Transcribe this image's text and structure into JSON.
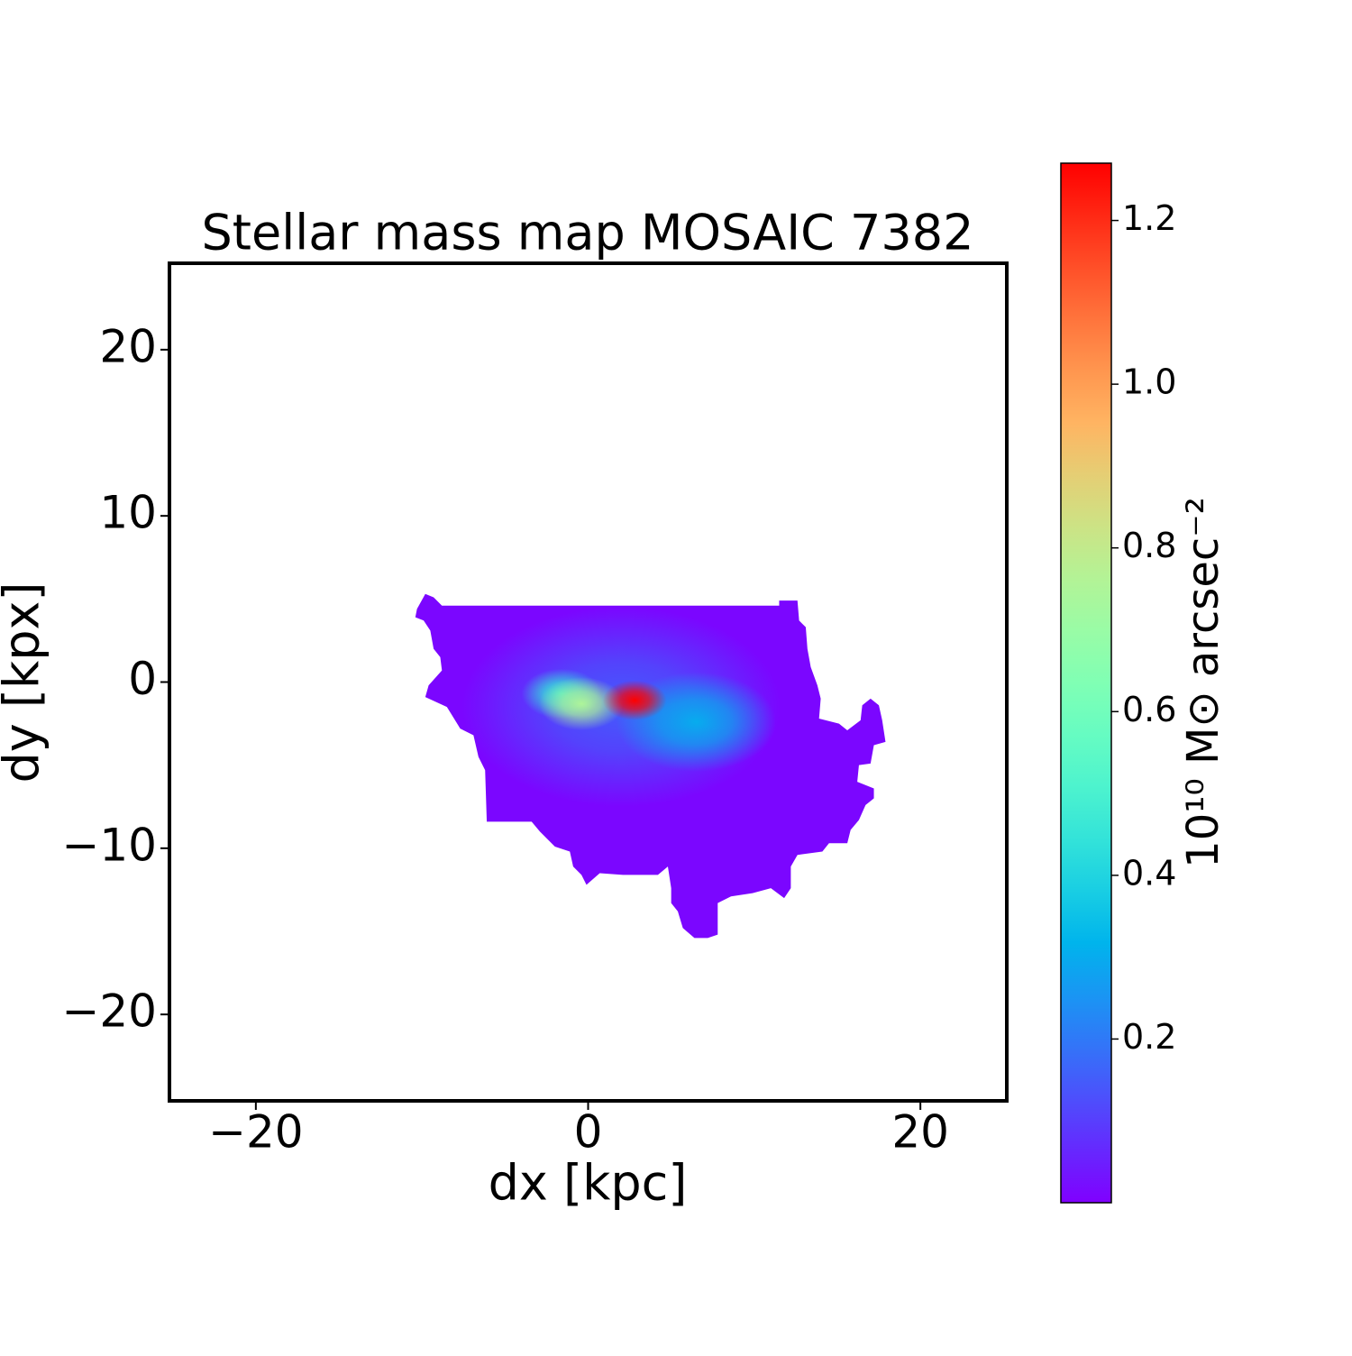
{
  "chart_data": {
    "type": "image_map",
    "title": "Stellar mass map MOSAIC 7382",
    "xlabel": "dx [kpc]",
    "ylabel": "dy [kpx]",
    "colorbar_label": "10¹⁰ M⊙ arcsec⁻²",
    "colormap": "rainbow",
    "xlim": [
      -25.2,
      25.2
    ],
    "ylim": [
      -25.2,
      25.2
    ],
    "xticks": [
      {
        "value": -20,
        "label": "−20"
      },
      0,
      20
    ],
    "yticks": [
      {
        "value": -20,
        "label": "−20"
      },
      {
        "value": -10,
        "label": "−10"
      },
      0,
      10,
      20
    ],
    "colorbar_lim": [
      0,
      1.27
    ],
    "colorbar_ticks": [
      0.2,
      0.4,
      0.6,
      0.8,
      {
        "value": 1.0,
        "label": "1.0"
      },
      1.2
    ],
    "region": {
      "value": 0.01,
      "x": [
        -10.3,
        -9.8,
        -9.3,
        -8.8,
        -7.6,
        11.5,
        11.5,
        12.6,
        12.7,
        13.1,
        13.2,
        13.4,
        13.8,
        14.0,
        13.9,
        15.1,
        15.6,
        16.4,
        16.5,
        17.0,
        17.5,
        17.7,
        17.9,
        17.2,
        17.0,
        16.3,
        16.2,
        17.2,
        17.2,
        16.7,
        16.3,
        15.8,
        15.6,
        14.5,
        14.1,
        12.6,
        12.2,
        12.2,
        11.8,
        11.0,
        9.9,
        8.6,
        7.8,
        7.8,
        7.2,
        6.4,
        5.7,
        5.4,
        5.0,
        5.0,
        4.8,
        4.2,
        2.1,
        0.7,
        -0.1,
        -0.4,
        -0.9,
        -1.1,
        -2.0,
        -2.9,
        -3.4,
        -6.1,
        -6.2,
        -6.6,
        -6.9,
        -7.7,
        -8.5,
        -9.8,
        -9.6,
        -8.8,
        -8.9,
        -9.3,
        -9.5,
        -9.9,
        -10.4
      ],
      "y": [
        4.4,
        5.3,
        5.1,
        4.6,
        4.6,
        4.6,
        4.9,
        4.9,
        3.7,
        3.3,
        2.0,
        0.9,
        -0.2,
        -1.0,
        -2.2,
        -2.5,
        -2.9,
        -2.3,
        -1.4,
        -1.0,
        -1.4,
        -2.3,
        -3.6,
        -3.8,
        -4.9,
        -5.0,
        -6.0,
        -6.4,
        -7.0,
        -7.4,
        -8.3,
        -8.9,
        -9.7,
        -9.7,
        -10.2,
        -10.4,
        -11.1,
        -12.4,
        -13.0,
        -12.4,
        -12.7,
        -12.9,
        -13.3,
        -15.2,
        -15.4,
        -15.4,
        -14.8,
        -13.8,
        -13.3,
        -12.4,
        -11.1,
        -11.6,
        -11.6,
        -11.5,
        -12.2,
        -11.6,
        -11.1,
        -10.2,
        -9.9,
        -9.0,
        -8.4,
        -8.4,
        -5.3,
        -4.5,
        -3.2,
        -2.8,
        -1.5,
        -0.9,
        -0.2,
        0.7,
        1.5,
        2.0,
        3.1,
        3.7,
        3.9
      ]
    },
    "peaks": {
      "x": [
        2.0,
        6.5,
        -1.6,
        -0.4,
        2.8
      ],
      "y": [
        -1.5,
        -2.4,
        -0.7,
        -1.3,
        -1.1
      ],
      "values": [
        0.15,
        0.3,
        0.45,
        0.75,
        1.27
      ],
      "sizes": [
        6,
        3,
        1.5,
        1.6,
        1.2
      ]
    }
  }
}
